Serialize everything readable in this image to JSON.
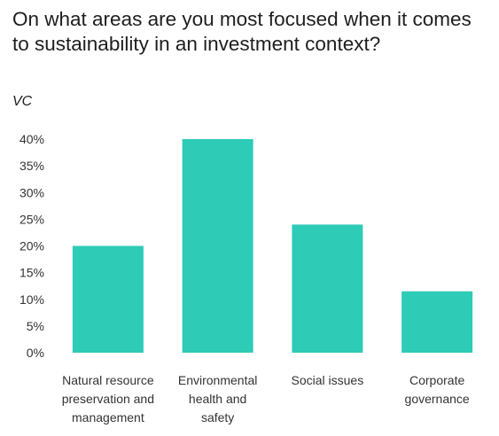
{
  "title": "On what areas are you most focused when it comes to sustainability in an investment context?",
  "subtitle": "VC",
  "chart_data": {
    "type": "bar",
    "categories": [
      [
        "Natural resource",
        "preservation and",
        "management"
      ],
      [
        "Environmental",
        "health and",
        "safety"
      ],
      [
        "Social issues"
      ],
      [
        "Corporate",
        "governance"
      ]
    ],
    "values": [
      20,
      40,
      24,
      11.5
    ],
    "ylim": [
      0,
      40
    ],
    "yticks": [
      0,
      5,
      10,
      15,
      20,
      25,
      30,
      35,
      40
    ],
    "ytick_labels": [
      "0%",
      "5%",
      "10%",
      "15%",
      "20%",
      "25%",
      "30%",
      "35%",
      "40%"
    ],
    "bar_color": "#2ecbb7",
    "grid": false,
    "legend": "none"
  }
}
